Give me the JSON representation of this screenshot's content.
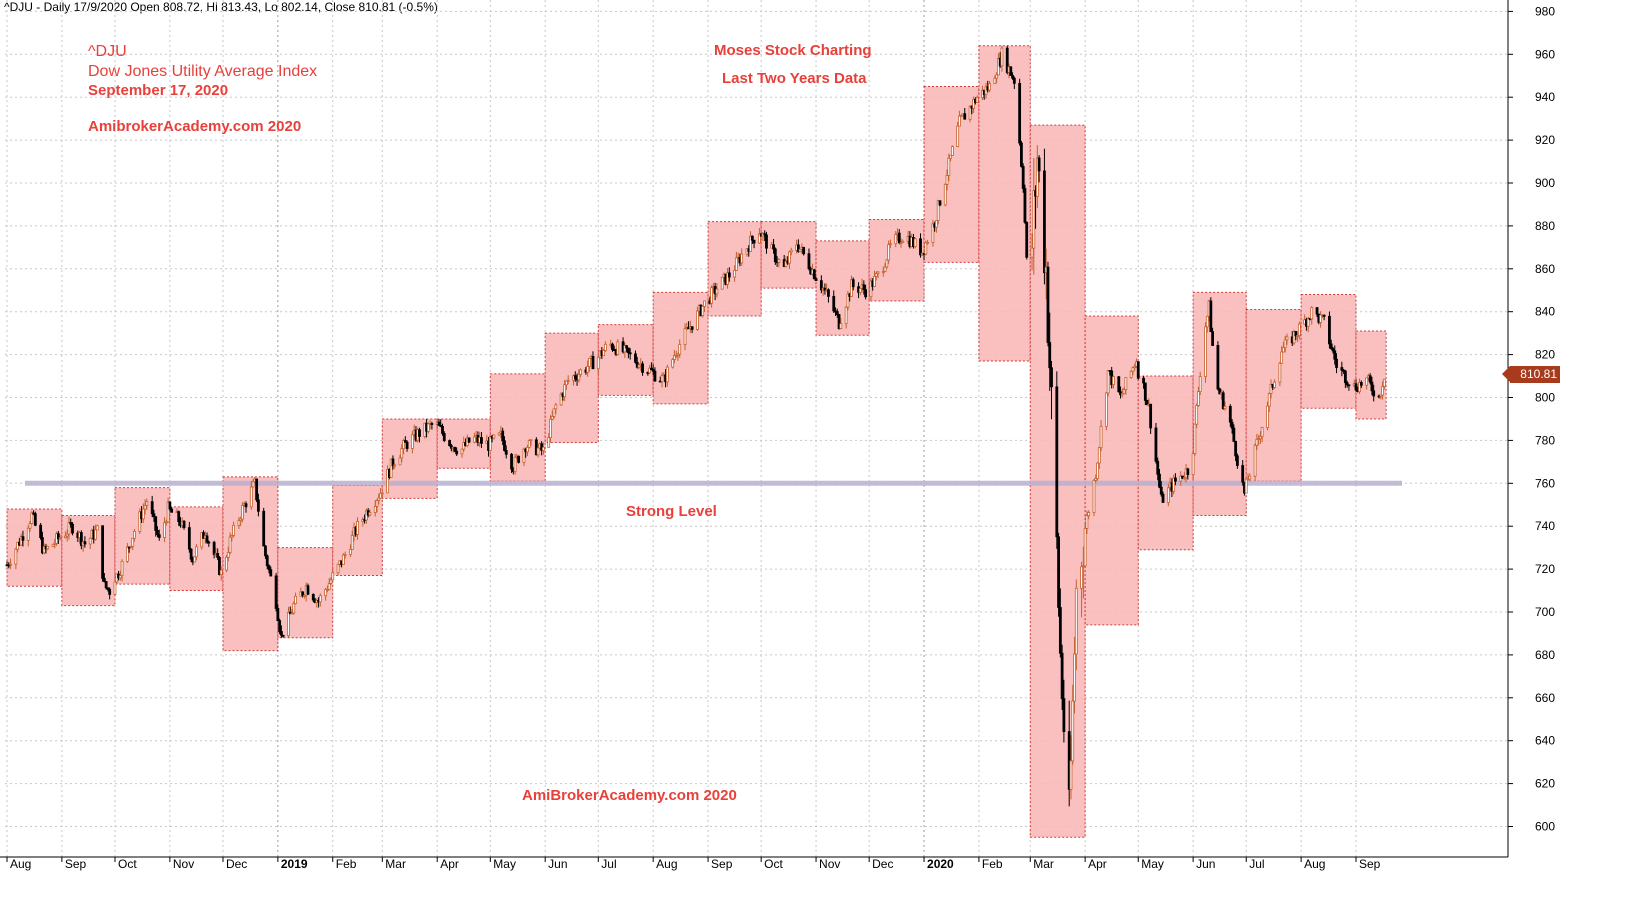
{
  "header": {
    "text": "^DJU - Daily 17/9/2020 Open 808.72, Hi 813.43, Lo 802.14, Close 810.81 (-0.5%)"
  },
  "annotations": {
    "symbol": "^DJU",
    "name": "Dow Jones Utility Average Index",
    "date": "September 17, 2020",
    "site_top": "AmibrokerAcademy.com  2020",
    "brand": "Moses Stock Charting",
    "period": "Last Two Years Data",
    "level_label": "Strong Level",
    "site_bottom": "AmiBrokerAcademy.com  2020"
  },
  "last_price_label": "810.81",
  "colors": {
    "box_fill": "#f9b4b4",
    "box_border": "#d23c3c",
    "candle_up": "#c4612f",
    "candle_down": "#000000",
    "level_line": "#b9afd0",
    "annotation_text": "#e8403a",
    "grid": "#c8c8c8",
    "badge": "#a83b1d"
  },
  "chart_data": {
    "type": "candlestick",
    "symbol": "^DJU",
    "ylim": [
      590,
      985
    ],
    "yticks": [
      600,
      620,
      640,
      660,
      680,
      700,
      720,
      740,
      760,
      780,
      800,
      820,
      840,
      860,
      880,
      900,
      920,
      940,
      960,
      980
    ],
    "x_labels": [
      "Aug",
      "Sep",
      "Oct",
      "Nov",
      "Dec",
      "2019",
      "Feb",
      "Mar",
      "Apr",
      "May",
      "Jun",
      "Jul",
      "Aug",
      "Sep",
      "Oct",
      "Nov",
      "Dec",
      "2020",
      "Feb",
      "Mar",
      "Apr",
      "May",
      "Jun",
      "Jul",
      "Aug",
      "Sep"
    ],
    "bold_x_labels": [
      "2019",
      "2020"
    ],
    "strong_level": 760,
    "last_close": 810.81,
    "monthly_ranges": [
      {
        "month": "Aug 2018",
        "low": 712,
        "high": 748
      },
      {
        "month": "Sep 2018",
        "low": 703,
        "high": 745
      },
      {
        "month": "Oct 2018",
        "low": 713,
        "high": 758
      },
      {
        "month": "Nov 2018",
        "low": 710,
        "high": 749
      },
      {
        "month": "Dec 2018",
        "low": 682,
        "high": 763
      },
      {
        "month": "Jan 2019",
        "low": 688,
        "high": 730
      },
      {
        "month": "Feb 2019",
        "low": 717,
        "high": 759
      },
      {
        "month": "Mar 2019",
        "low": 753,
        "high": 790
      },
      {
        "month": "Apr 2019",
        "low": 767,
        "high": 790
      },
      {
        "month": "May 2019",
        "low": 761,
        "high": 811
      },
      {
        "month": "Jun 2019",
        "low": 779,
        "high": 830
      },
      {
        "month": "Jul 2019",
        "low": 801,
        "high": 834
      },
      {
        "month": "Aug 2019",
        "low": 797,
        "high": 849
      },
      {
        "month": "Sep 2019",
        "low": 838,
        "high": 882
      },
      {
        "month": "Oct 2019",
        "low": 851,
        "high": 882
      },
      {
        "month": "Nov 2019",
        "low": 829,
        "high": 873
      },
      {
        "month": "Dec 2019",
        "low": 845,
        "high": 883
      },
      {
        "month": "Jan 2020",
        "low": 863,
        "high": 945
      },
      {
        "month": "Feb 2020",
        "low": 817,
        "high": 964
      },
      {
        "month": "Mar 2020",
        "low": 595,
        "high": 927
      },
      {
        "month": "Apr 2020",
        "low": 694,
        "high": 838
      },
      {
        "month": "May 2020",
        "low": 729,
        "high": 810
      },
      {
        "month": "Jun 2020",
        "low": 745,
        "high": 849
      },
      {
        "month": "Jul 2020",
        "low": 761,
        "high": 841
      },
      {
        "month": "Aug 2020",
        "low": 795,
        "high": 848
      },
      {
        "month": "Sep 2020",
        "low": 790,
        "high": 831
      }
    ],
    "month_start_dates": [
      "2018-08-01",
      "2018-09-01",
      "2018-10-01",
      "2018-11-01",
      "2018-12-01",
      "2019-01-01",
      "2019-02-01",
      "2019-03-01",
      "2019-04-01",
      "2019-05-01",
      "2019-06-01",
      "2019-07-01",
      "2019-08-01",
      "2019-09-01",
      "2019-10-01",
      "2019-11-01",
      "2019-12-01",
      "2020-01-01",
      "2020-02-01",
      "2020-03-01",
      "2020-04-01",
      "2020-05-01",
      "2020-06-01",
      "2020-07-01",
      "2020-08-01",
      "2020-09-01",
      "2020-09-18"
    ],
    "price_path": [
      [
        "2018-08-01",
        722
      ],
      [
        "2018-08-08",
        733
      ],
      [
        "2018-08-15",
        745
      ],
      [
        "2018-08-22",
        728
      ],
      [
        "2018-08-31",
        735
      ],
      [
        "2018-09-07",
        740
      ],
      [
        "2018-09-14",
        732
      ],
      [
        "2018-09-21",
        738
      ],
      [
        "2018-09-25",
        712
      ],
      [
        "2018-09-28",
        710
      ],
      [
        "2018-10-05",
        722
      ],
      [
        "2018-10-12",
        738
      ],
      [
        "2018-10-19",
        752
      ],
      [
        "2018-10-26",
        733
      ],
      [
        "2018-10-31",
        748
      ],
      [
        "2018-11-07",
        742
      ],
      [
        "2018-11-14",
        725
      ],
      [
        "2018-11-21",
        738
      ],
      [
        "2018-11-30",
        718
      ],
      [
        "2018-12-05",
        733
      ],
      [
        "2018-12-12",
        748
      ],
      [
        "2018-12-19",
        760
      ],
      [
        "2018-12-24",
        730
      ],
      [
        "2018-12-31",
        705
      ],
      [
        "2019-01-03",
        688
      ],
      [
        "2019-01-10",
        703
      ],
      [
        "2019-01-17",
        712
      ],
      [
        "2019-01-24",
        705
      ],
      [
        "2019-01-31",
        715
      ],
      [
        "2019-02-07",
        725
      ],
      [
        "2019-02-14",
        738
      ],
      [
        "2019-02-21",
        748
      ],
      [
        "2019-02-28",
        756
      ],
      [
        "2019-03-07",
        770
      ],
      [
        "2019-03-14",
        778
      ],
      [
        "2019-03-21",
        783
      ],
      [
        "2019-03-31",
        788
      ],
      [
        "2019-04-07",
        780
      ],
      [
        "2019-04-14",
        775
      ],
      [
        "2019-04-21",
        781
      ],
      [
        "2019-04-30",
        778
      ],
      [
        "2019-05-07",
        782
      ],
      [
        "2019-05-14",
        768
      ],
      [
        "2019-05-21",
        778
      ],
      [
        "2019-05-31",
        775
      ],
      [
        "2019-06-07",
        796
      ],
      [
        "2019-06-14",
        808
      ],
      [
        "2019-06-21",
        812
      ],
      [
        "2019-06-30",
        818
      ],
      [
        "2019-07-07",
        825
      ],
      [
        "2019-07-14",
        822
      ],
      [
        "2019-07-21",
        818
      ],
      [
        "2019-07-31",
        812
      ],
      [
        "2019-08-07",
        808
      ],
      [
        "2019-08-14",
        822
      ],
      [
        "2019-08-21",
        832
      ],
      [
        "2019-08-31",
        845
      ],
      [
        "2019-09-07",
        852
      ],
      [
        "2019-09-14",
        858
      ],
      [
        "2019-09-21",
        868
      ],
      [
        "2019-09-30",
        878
      ],
      [
        "2019-10-07",
        868
      ],
      [
        "2019-10-14",
        860
      ],
      [
        "2019-10-21",
        872
      ],
      [
        "2019-10-31",
        858
      ],
      [
        "2019-11-07",
        848
      ],
      [
        "2019-11-14",
        835
      ],
      [
        "2019-11-21",
        852
      ],
      [
        "2019-11-30",
        850
      ],
      [
        "2019-12-07",
        858
      ],
      [
        "2019-12-14",
        872
      ],
      [
        "2019-12-21",
        876
      ],
      [
        "2019-12-31",
        868
      ],
      [
        "2020-01-07",
        882
      ],
      [
        "2020-01-14",
        905
      ],
      [
        "2020-01-21",
        928
      ],
      [
        "2020-01-31",
        940
      ],
      [
        "2020-02-07",
        945
      ],
      [
        "2020-02-14",
        960
      ],
      [
        "2020-02-21",
        948
      ],
      [
        "2020-02-26",
        900
      ],
      [
        "2020-02-29",
        845
      ],
      [
        "2020-03-05",
        912
      ],
      [
        "2020-03-10",
        860
      ],
      [
        "2020-03-16",
        730
      ],
      [
        "2020-03-18",
        680
      ],
      [
        "2020-03-23",
        600
      ],
      [
        "2020-03-27",
        710
      ],
      [
        "2020-03-31",
        735
      ],
      [
        "2020-04-07",
        765
      ],
      [
        "2020-04-14",
        812
      ],
      [
        "2020-04-21",
        800
      ],
      [
        "2020-04-30",
        818
      ],
      [
        "2020-05-07",
        795
      ],
      [
        "2020-05-14",
        752
      ],
      [
        "2020-05-21",
        760
      ],
      [
        "2020-05-31",
        768
      ],
      [
        "2020-06-07",
        830
      ],
      [
        "2020-06-10",
        842
      ],
      [
        "2020-06-14",
        806
      ],
      [
        "2020-06-21",
        792
      ],
      [
        "2020-06-30",
        755
      ],
      [
        "2020-07-07",
        778
      ],
      [
        "2020-07-14",
        800
      ],
      [
        "2020-07-21",
        822
      ],
      [
        "2020-07-31",
        832
      ],
      [
        "2020-08-07",
        840
      ],
      [
        "2020-08-14",
        835
      ],
      [
        "2020-08-21",
        815
      ],
      [
        "2020-08-31",
        805
      ],
      [
        "2020-09-07",
        808
      ],
      [
        "2020-09-14",
        800
      ],
      [
        "2020-09-17",
        810.81
      ]
    ]
  }
}
